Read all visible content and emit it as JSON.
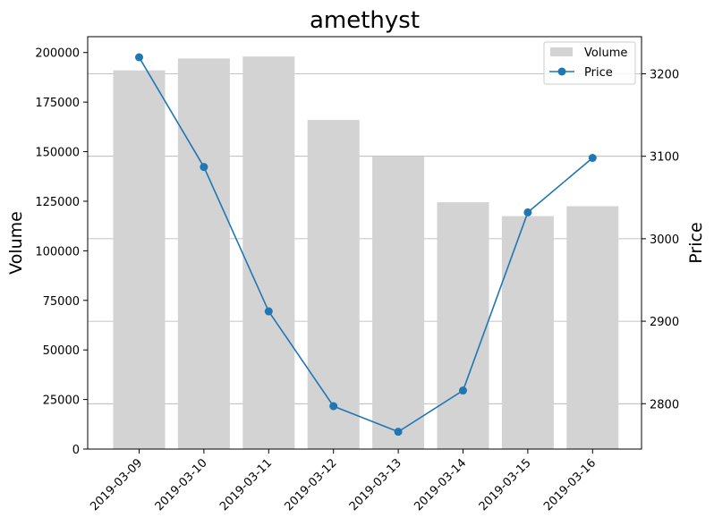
{
  "chart_data": {
    "type": "bar+line",
    "title": "amethyst",
    "categories": [
      "2019-03-09",
      "2019-03-10",
      "2019-03-11",
      "2019-03-12",
      "2019-03-13",
      "2019-03-14",
      "2019-03-15",
      "2019-03-16"
    ],
    "series": [
      {
        "name": "Volume",
        "type": "bar",
        "axis": "left",
        "color": "#d3d3d3",
        "values": [
          191000,
          197000,
          198000,
          166000,
          147500,
          124500,
          117500,
          122500
        ]
      },
      {
        "name": "Price",
        "type": "line",
        "axis": "right",
        "color": "#1f77b4",
        "marker": "circle",
        "values": [
          3220,
          3087,
          2912,
          2797,
          2766,
          2816,
          3032,
          3098
        ]
      }
    ],
    "ylabel_left": "Volume",
    "ylabel_right": "Price",
    "ylim_left": [
      0,
      208000
    ],
    "ylim_right": [
      2745,
      3245
    ],
    "yticks_left": [
      "0",
      "25000",
      "50000",
      "75000",
      "100000",
      "125000",
      "150000",
      "175000",
      "200000"
    ],
    "yticks_right": [
      "2800",
      "2900",
      "3000",
      "3100",
      "3200"
    ],
    "grid": "horizontal lines at right-axis ticks",
    "legend": {
      "position": "top-right",
      "entries": [
        "Volume",
        "Price"
      ]
    },
    "xtick_rotation": 45
  }
}
